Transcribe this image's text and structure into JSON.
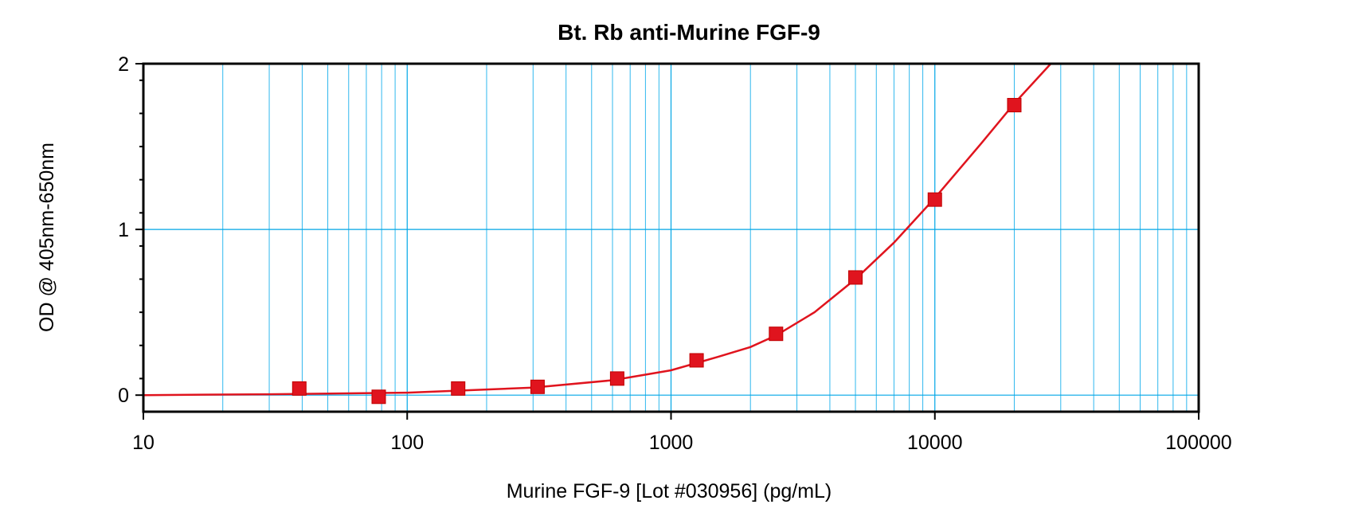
{
  "chart_data": {
    "type": "scatter",
    "title": "Bt. Rb anti-Murine FGF-9",
    "xlabel": "Murine FGF-9 [Lot #030956] (pg/mL)",
    "ylabel": "OD @ 405nm-650nm",
    "xscale": "log",
    "xlim": [
      10,
      100000
    ],
    "ylim": [
      -0.1,
      2
    ],
    "x_ticks": [
      10,
      100,
      1000,
      10000,
      100000
    ],
    "x_tick_labels": [
      "10",
      "100",
      "1000",
      "10000",
      "100000"
    ],
    "y_ticks": [
      0,
      1,
      2
    ],
    "y_tick_labels": [
      "0",
      "1",
      "2"
    ],
    "grid": true,
    "series": [
      {
        "color": "#e0141e",
        "marker": "square",
        "fit_line": true,
        "points": [
          {
            "x": 39,
            "y": 0.04
          },
          {
            "x": 78,
            "y": -0.01
          },
          {
            "x": 156,
            "y": 0.04
          },
          {
            "x": 312,
            "y": 0.05
          },
          {
            "x": 625,
            "y": 0.1
          },
          {
            "x": 1250,
            "y": 0.21
          },
          {
            "x": 2500,
            "y": 0.37
          },
          {
            "x": 5000,
            "y": 0.71
          },
          {
            "x": 10000,
            "y": 1.18
          },
          {
            "x": 20000,
            "y": 1.75
          }
        ],
        "fit_curve": [
          {
            "x": 10,
            "y": 0.0
          },
          {
            "x": 30,
            "y": 0.005
          },
          {
            "x": 100,
            "y": 0.015
          },
          {
            "x": 300,
            "y": 0.045
          },
          {
            "x": 600,
            "y": 0.09
          },
          {
            "x": 1000,
            "y": 0.15
          },
          {
            "x": 1500,
            "y": 0.23
          },
          {
            "x": 2000,
            "y": 0.29
          },
          {
            "x": 2500,
            "y": 0.36
          },
          {
            "x": 3500,
            "y": 0.5
          },
          {
            "x": 5000,
            "y": 0.7
          },
          {
            "x": 7000,
            "y": 0.92
          },
          {
            "x": 10000,
            "y": 1.19
          },
          {
            "x": 15000,
            "y": 1.52
          },
          {
            "x": 20000,
            "y": 1.76
          },
          {
            "x": 27500,
            "y": 2.0
          }
        ]
      }
    ]
  }
}
